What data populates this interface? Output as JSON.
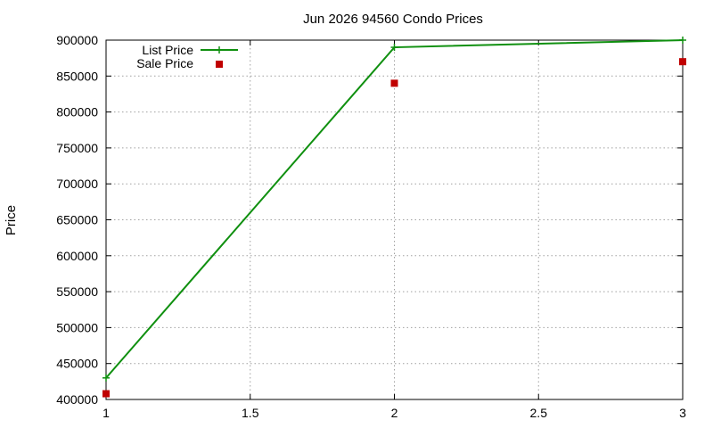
{
  "chart_data": {
    "type": "line",
    "title": "Jun 2026 94560 Condo Prices",
    "xlabel": "",
    "ylabel": "Price",
    "xlim": [
      1,
      3
    ],
    "ylim": [
      400000,
      900000
    ],
    "x_ticks": [
      "1",
      "1.5",
      "2",
      "2.5",
      "3"
    ],
    "y_ticks": [
      "400000",
      "450000",
      "500000",
      "550000",
      "600000",
      "650000",
      "700000",
      "750000",
      "800000",
      "850000",
      "900000"
    ],
    "grid": true,
    "legend_position": "top-left",
    "series": [
      {
        "name": "List Price",
        "style": "line-with-plus-markers",
        "color": "#109010",
        "x": [
          1,
          2,
          3
        ],
        "y": [
          430000,
          890000,
          900000
        ]
      },
      {
        "name": "Sale Price",
        "style": "square-points",
        "color": "#c00000",
        "x": [
          1,
          2,
          3
        ],
        "y": [
          408000,
          840000,
          870000
        ]
      }
    ]
  }
}
